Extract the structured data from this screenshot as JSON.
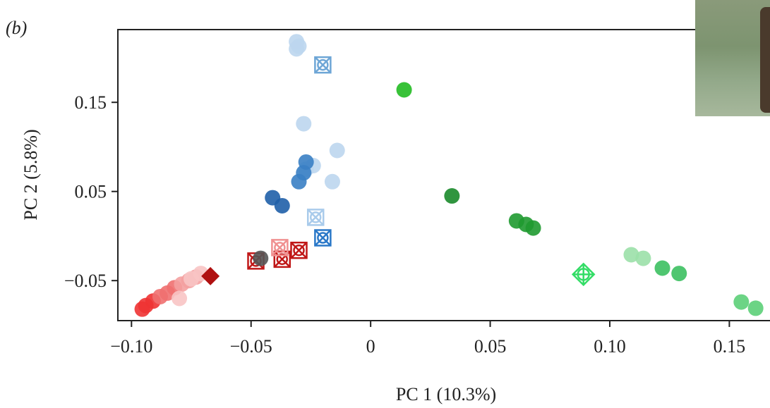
{
  "chart_data": {
    "type": "scatter",
    "panel_label": "(b)",
    "x_label": "PC 1 (10.3%)",
    "y_label": "PC 2 (5.8%)",
    "xlim": [
      -0.1057,
      0.167
    ],
    "ylim": [
      -0.0949,
      0.2316
    ],
    "xticks": [
      {
        "value": -0.1,
        "label": "−0.10"
      },
      {
        "value": -0.05,
        "label": "−0.05"
      },
      0,
      0.05,
      {
        "value": 0.1,
        "label": "0.10"
      },
      0.15
    ],
    "yticks": [
      {
        "value": -0.05,
        "label": "−0.05"
      },
      0.05,
      0.15
    ],
    "series": [
      {
        "color": "#bcd6ee",
        "marker": "circle",
        "x": [
          -0.031,
          -0.031,
          -0.03,
          -0.028,
          -0.014,
          -0.016,
          -0.024,
          -0.027
        ],
        "values": [
          0.218,
          0.21,
          0.213,
          0.126,
          0.096,
          0.061,
          0.079,
          0.075
        ]
      },
      {
        "color": "#6ea6d6",
        "marker": "crossed-square",
        "x": [
          -0.02
        ],
        "values": [
          0.192
        ]
      },
      {
        "color": "#a9cbeb",
        "marker": "crossed-square",
        "x": [
          -0.023
        ],
        "values": [
          0.021
        ]
      },
      {
        "color": "#3a7fc4",
        "marker": "circle",
        "x": [
          -0.027,
          -0.028,
          -0.03
        ],
        "values": [
          0.083,
          0.071,
          0.061
        ]
      },
      {
        "color": "#1f5fa8",
        "marker": "circle",
        "x": [
          -0.041,
          -0.037
        ],
        "values": [
          0.043,
          0.034
        ]
      },
      {
        "color": "#2a78c8",
        "marker": "crossed-square",
        "x": [
          -0.02
        ],
        "values": [
          -0.002
        ]
      },
      {
        "color": "#22bb22",
        "marker": "circle",
        "x": [
          0.014
        ],
        "values": [
          0.164
        ]
      },
      {
        "color": "#1a8a2a",
        "marker": "circle",
        "x": [
          0.034
        ],
        "values": [
          0.045
        ]
      },
      {
        "color": "#1f9a30",
        "marker": "circle",
        "x": [
          0.061,
          0.065,
          0.068
        ],
        "values": [
          0.017,
          0.013,
          0.009
        ]
      },
      {
        "color": "#33dd66",
        "marker": "diamond-plus",
        "x": [
          0.089
        ],
        "values": [
          -0.043
        ]
      },
      {
        "color": "#9be0a8",
        "marker": "circle",
        "x": [
          0.109,
          0.114
        ],
        "values": [
          -0.021,
          -0.025
        ]
      },
      {
        "color": "#3cc060",
        "marker": "circle",
        "x": [
          0.122,
          0.129
        ],
        "values": [
          -0.036,
          -0.042
        ]
      },
      {
        "color": "#5ccf78",
        "marker": "circle",
        "x": [
          0.155,
          0.161
        ],
        "values": [
          -0.074,
          -0.081
        ]
      },
      {
        "color": "#ee3333",
        "marker": "circle",
        "x": [
          -0.0955,
          -0.094,
          -0.091
        ],
        "values": [
          -0.082,
          -0.078,
          -0.073
        ]
      },
      {
        "color": "#f07070",
        "marker": "circle",
        "x": [
          -0.088,
          -0.085,
          -0.082
        ],
        "values": [
          -0.068,
          -0.064,
          -0.058
        ]
      },
      {
        "color": "#f4a0a0",
        "marker": "circle",
        "x": [
          -0.079,
          -0.076,
          -0.073
        ],
        "values": [
          -0.054,
          -0.05,
          -0.046
        ]
      },
      {
        "color": "#f8c4c4",
        "marker": "circle",
        "x": [
          -0.08,
          -0.075,
          -0.071
        ],
        "values": [
          -0.07,
          -0.048,
          -0.042
        ]
      },
      {
        "color": "#b01010",
        "marker": "diamond",
        "x": [
          -0.067
        ],
        "values": [
          -0.045
        ]
      },
      {
        "color": "#c01818",
        "marker": "crossed-square",
        "x": [
          -0.048,
          -0.037,
          -0.03
        ],
        "values": [
          -0.028,
          -0.026,
          -0.016
        ]
      },
      {
        "color": "#f09090",
        "marker": "crossed-square",
        "x": [
          -0.038
        ],
        "values": [
          -0.013
        ]
      },
      {
        "color": "#555555",
        "marker": "circle",
        "x": [
          -0.046
        ],
        "values": [
          -0.025
        ]
      }
    ]
  }
}
